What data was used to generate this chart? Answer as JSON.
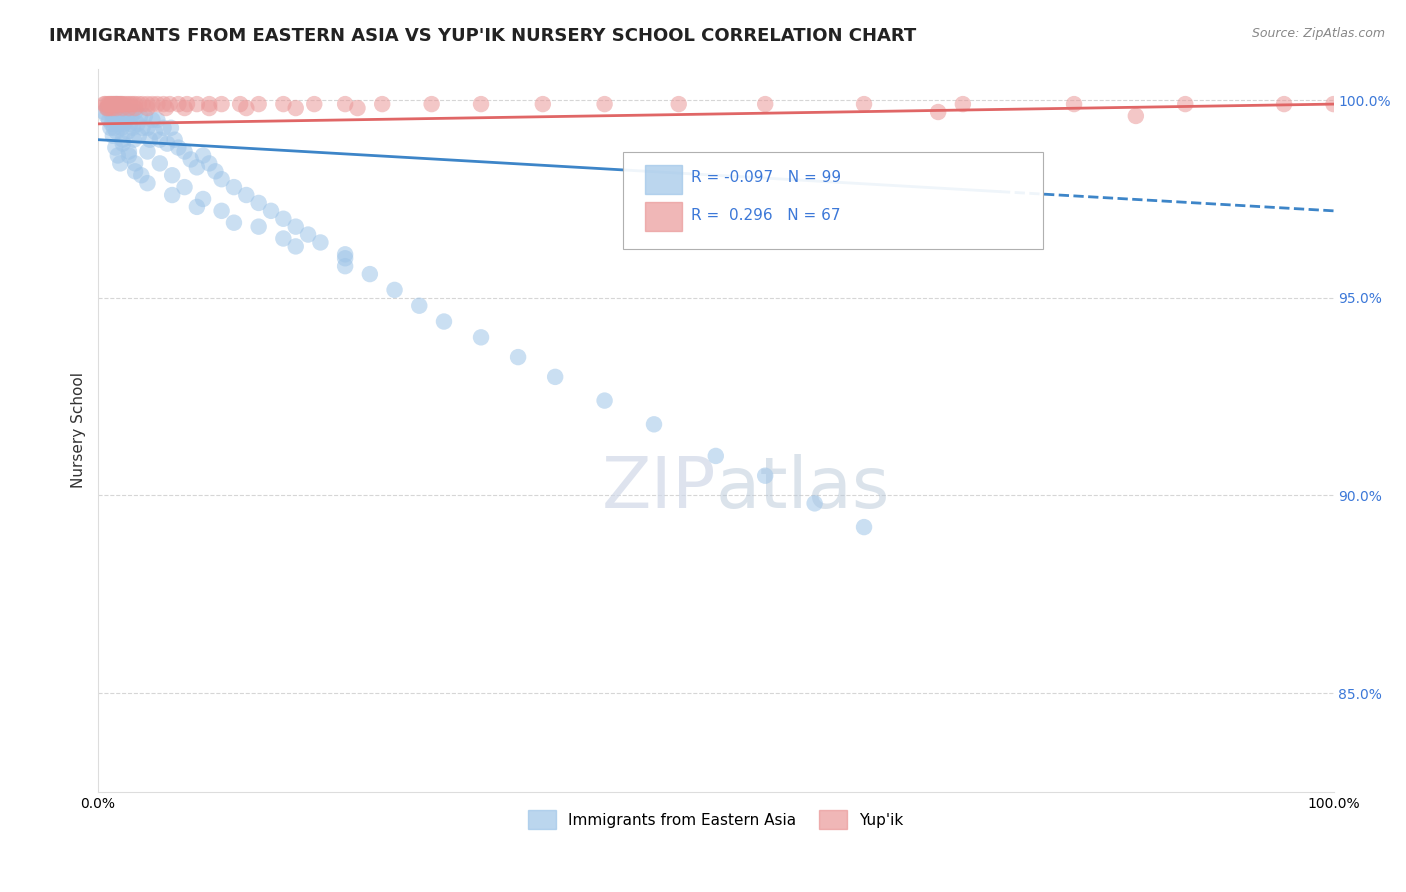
{
  "title": "IMMIGRANTS FROM EASTERN ASIA VS YUP'IK NURSERY SCHOOL CORRELATION CHART",
  "source": "Source: ZipAtlas.com",
  "ylabel": "Nursery School",
  "xlim": [
    0.0,
    1.0
  ],
  "ylim": [
    0.825,
    1.008
  ],
  "yticks": [
    0.85,
    0.9,
    0.95,
    1.0
  ],
  "ytick_labels": [
    "85.0%",
    "90.0%",
    "95.0%",
    "100.0%"
  ],
  "blue_label": "Immigrants from Eastern Asia",
  "pink_label": "Yup'ik",
  "blue_color": "#9fc5e8",
  "pink_color": "#ea9999",
  "blue_R": -0.097,
  "blue_N": 99,
  "pink_R": 0.296,
  "pink_N": 67,
  "blue_line_color": "#3d85c8",
  "pink_line_color": "#e06666",
  "blue_line_start_y": 0.99,
  "blue_line_end_y": 0.972,
  "pink_line_start_y": 0.994,
  "pink_line_end_y": 0.999,
  "blue_dash_split": 0.73,
  "blue_x": [
    0.005,
    0.007,
    0.008,
    0.009,
    0.01,
    0.011,
    0.012,
    0.013,
    0.014,
    0.015,
    0.016,
    0.017,
    0.018,
    0.019,
    0.02,
    0.021,
    0.022,
    0.023,
    0.024,
    0.025,
    0.026,
    0.027,
    0.028,
    0.029,
    0.03,
    0.032,
    0.033,
    0.034,
    0.036,
    0.038,
    0.04,
    0.042,
    0.044,
    0.046,
    0.048,
    0.05,
    0.053,
    0.056,
    0.059,
    0.062,
    0.065,
    0.07,
    0.075,
    0.08,
    0.085,
    0.09,
    0.095,
    0.1,
    0.11,
    0.12,
    0.13,
    0.14,
    0.15,
    0.16,
    0.17,
    0.18,
    0.2,
    0.22,
    0.24,
    0.26,
    0.28,
    0.31,
    0.34,
    0.37,
    0.41,
    0.45,
    0.5,
    0.54,
    0.58,
    0.62,
    0.008,
    0.01,
    0.012,
    0.014,
    0.016,
    0.018,
    0.02,
    0.025,
    0.03,
    0.035,
    0.04,
    0.05,
    0.06,
    0.07,
    0.085,
    0.1,
    0.13,
    0.16,
    0.2,
    0.015,
    0.02,
    0.025,
    0.03,
    0.04,
    0.06,
    0.08,
    0.11,
    0.15,
    0.2
  ],
  "blue_y": [
    0.997,
    0.996,
    0.998,
    0.995,
    0.997,
    0.994,
    0.996,
    0.993,
    0.995,
    0.999,
    0.996,
    0.994,
    0.997,
    0.993,
    0.996,
    0.994,
    0.998,
    0.995,
    0.992,
    0.997,
    0.994,
    0.996,
    0.993,
    0.99,
    0.997,
    0.994,
    0.991,
    0.996,
    0.993,
    0.996,
    0.993,
    0.99,
    0.995,
    0.992,
    0.995,
    0.99,
    0.993,
    0.989,
    0.993,
    0.99,
    0.988,
    0.987,
    0.985,
    0.983,
    0.986,
    0.984,
    0.982,
    0.98,
    0.978,
    0.976,
    0.974,
    0.972,
    0.97,
    0.968,
    0.966,
    0.964,
    0.96,
    0.956,
    0.952,
    0.948,
    0.944,
    0.94,
    0.935,
    0.93,
    0.924,
    0.918,
    0.91,
    0.905,
    0.898,
    0.892,
    0.998,
    0.993,
    0.991,
    0.988,
    0.986,
    0.984,
    0.99,
    0.987,
    0.984,
    0.981,
    0.987,
    0.984,
    0.981,
    0.978,
    0.975,
    0.972,
    0.968,
    0.963,
    0.958,
    0.992,
    0.989,
    0.986,
    0.982,
    0.979,
    0.976,
    0.973,
    0.969,
    0.965,
    0.961
  ],
  "pink_x": [
    0.005,
    0.006,
    0.007,
    0.008,
    0.009,
    0.01,
    0.011,
    0.012,
    0.013,
    0.014,
    0.015,
    0.016,
    0.017,
    0.018,
    0.019,
    0.02,
    0.022,
    0.024,
    0.026,
    0.028,
    0.03,
    0.033,
    0.036,
    0.04,
    0.044,
    0.048,
    0.053,
    0.058,
    0.065,
    0.072,
    0.08,
    0.09,
    0.1,
    0.115,
    0.13,
    0.15,
    0.175,
    0.2,
    0.23,
    0.27,
    0.31,
    0.36,
    0.41,
    0.47,
    0.54,
    0.62,
    0.7,
    0.79,
    0.88,
    0.96,
    1.0,
    0.008,
    0.01,
    0.012,
    0.015,
    0.02,
    0.025,
    0.03,
    0.04,
    0.055,
    0.07,
    0.09,
    0.12,
    0.16,
    0.21,
    0.68,
    0.84
  ],
  "pink_y": [
    0.999,
    0.999,
    0.998,
    0.999,
    0.999,
    0.999,
    0.999,
    0.999,
    0.999,
    0.999,
    0.999,
    0.999,
    0.999,
    0.999,
    0.999,
    0.999,
    0.999,
    0.999,
    0.999,
    0.999,
    0.999,
    0.999,
    0.999,
    0.999,
    0.999,
    0.999,
    0.999,
    0.999,
    0.999,
    0.999,
    0.999,
    0.999,
    0.999,
    0.999,
    0.999,
    0.999,
    0.999,
    0.999,
    0.999,
    0.999,
    0.999,
    0.999,
    0.999,
    0.999,
    0.999,
    0.999,
    0.999,
    0.999,
    0.999,
    0.999,
    0.999,
    0.998,
    0.998,
    0.998,
    0.998,
    0.998,
    0.998,
    0.998,
    0.998,
    0.998,
    0.998,
    0.998,
    0.998,
    0.998,
    0.998,
    0.997,
    0.996
  ]
}
